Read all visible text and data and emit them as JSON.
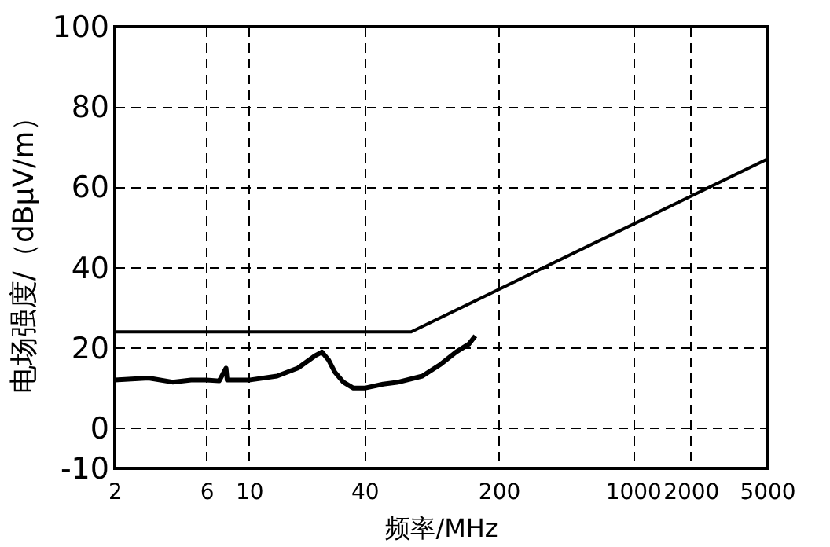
{
  "chart_data": {
    "type": "line",
    "xlabel": "频率/MHz",
    "ylabel": "电场强度/（dBμV/m）",
    "xlim": [
      2,
      5000
    ],
    "xticks": [
      2,
      6,
      10,
      40,
      200,
      1000,
      2000,
      5000
    ],
    "ylim": [
      -10,
      100
    ],
    "yticks": [
      -10,
      0,
      20,
      40,
      60,
      80,
      100
    ],
    "log": "x",
    "grid": true,
    "marker": "none",
    "line_style": "solid",
    "series": [
      {
        "color": "#000000",
        "x": [
          2,
          70,
          5000
        ],
        "values": [
          24,
          24,
          67
        ]
      },
      {
        "color": "#000000",
        "x": [
          2,
          3,
          4,
          5,
          6,
          7,
          7.6,
          7.7,
          9,
          10,
          14,
          18,
          22,
          24,
          26,
          28,
          31,
          35,
          40,
          50,
          60,
          80,
          100,
          120,
          140,
          151
        ],
        "values": [
          12,
          12.5,
          11.5,
          12,
          12,
          11.8,
          15,
          12,
          12,
          12,
          13,
          15,
          18,
          19,
          17,
          14,
          11.5,
          10,
          10,
          11,
          11.5,
          13,
          16,
          19,
          21,
          23
        ]
      }
    ]
  }
}
